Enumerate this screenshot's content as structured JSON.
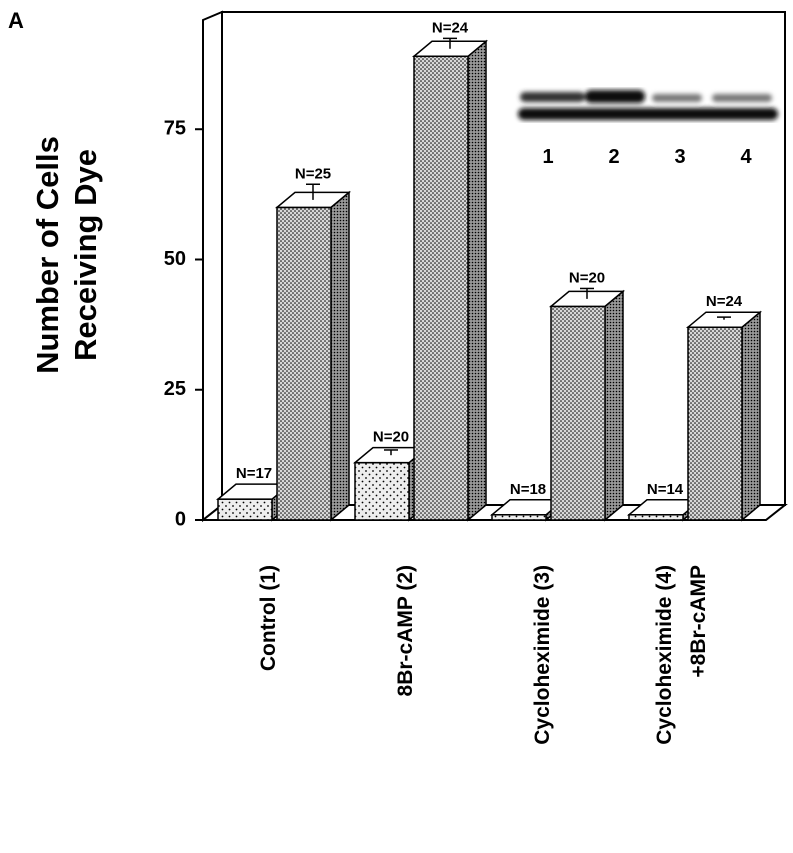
{
  "chart_data": {
    "type": "bar3d",
    "panel_label": "A",
    "y_label": [
      "Number of Cells",
      "Receiving Dye"
    ],
    "categories": [
      "Control (1)",
      "8Br-cAMP (2)",
      "Cycloheximide (3)",
      "Cycloheximide (4)\n+8Br-cAMP"
    ],
    "series": [
      {
        "color": "#eeeeee",
        "values": [
          4,
          11,
          1,
          1
        ],
        "errors": [
          0,
          1,
          0,
          0
        ],
        "value_labels": [
          "N=17",
          "N=20",
          "N=18",
          "N=14"
        ]
      },
      {
        "color": "#d8d8d8",
        "values": [
          60,
          89,
          41,
          37
        ],
        "errors": [
          3,
          2,
          2,
          0.5
        ],
        "value_labels": [
          "N=25",
          "N=24",
          "N=20",
          "N=24"
        ]
      }
    ],
    "ylim": [
      0,
      97.5
    ],
    "yticks": [
      0,
      25,
      50,
      75
    ],
    "inset": {
      "lane_labels": [
        "1",
        "2",
        "3",
        "4"
      ]
    }
  }
}
